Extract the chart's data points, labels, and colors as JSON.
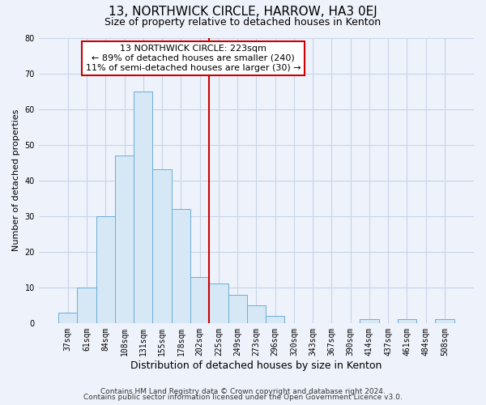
{
  "title": "13, NORTHWICK CIRCLE, HARROW, HA3 0EJ",
  "subtitle": "Size of property relative to detached houses in Kenton",
  "xlabel": "Distribution of detached houses by size in Kenton",
  "ylabel": "Number of detached properties",
  "bar_labels": [
    "37sqm",
    "61sqm",
    "84sqm",
    "108sqm",
    "131sqm",
    "155sqm",
    "178sqm",
    "202sqm",
    "225sqm",
    "249sqm",
    "273sqm",
    "296sqm",
    "320sqm",
    "343sqm",
    "367sqm",
    "390sqm",
    "414sqm",
    "437sqm",
    "461sqm",
    "484sqm",
    "508sqm"
  ],
  "bar_heights": [
    3,
    10,
    30,
    47,
    65,
    43,
    32,
    13,
    11,
    8,
    5,
    2,
    0,
    0,
    0,
    0,
    1,
    0,
    1,
    0,
    1
  ],
  "bar_color": "#d6e8f5",
  "bar_edge_color": "#6baed6",
  "vline_x_index": 8,
  "vline_color": "#cc0000",
  "annotation_title": "13 NORTHWICK CIRCLE: 223sqm",
  "annotation_line1": "← 89% of detached houses are smaller (240)",
  "annotation_line2": "11% of semi-detached houses are larger (30) →",
  "annotation_box_facecolor": "#ffffff",
  "annotation_box_edgecolor": "#cc0000",
  "ylim": [
    0,
    80
  ],
  "yticks": [
    0,
    10,
    20,
    30,
    40,
    50,
    60,
    70,
    80
  ],
  "footer1": "Contains HM Land Registry data © Crown copyright and database right 2024.",
  "footer2": "Contains public sector information licensed under the Open Government Licence v3.0.",
  "bg_color": "#eef2fb",
  "grid_color": "#c8d4e8",
  "title_fontsize": 11,
  "subtitle_fontsize": 9,
  "ylabel_fontsize": 8,
  "xlabel_fontsize": 9,
  "tick_fontsize": 7,
  "footer_fontsize": 6.5
}
